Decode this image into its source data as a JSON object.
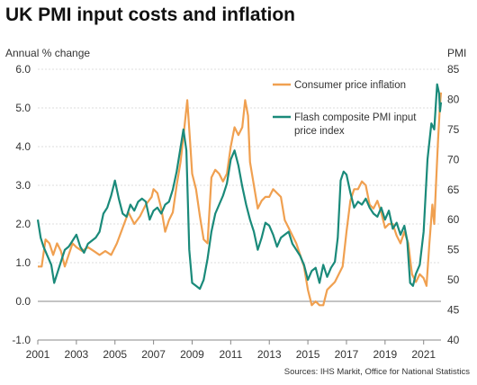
{
  "title": "UK PMI input costs and inflation",
  "source": "Sources: IHS Markit, Office for National Statistics",
  "colors": {
    "cpi": "#f0a050",
    "pmi": "#1a8a7a",
    "grid": "#dddddd"
  },
  "chart_data": {
    "type": "line",
    "title": "UK PMI input costs and inflation",
    "ylabel_left": "Annual % change",
    "ylabel_right": "PMI",
    "xlim": [
      2001.0,
      2021.9
    ],
    "ylim_left": [
      -1.0,
      6.0
    ],
    "ylim_right": [
      40,
      85
    ],
    "grid": true,
    "legend_position": "top-right",
    "x_ticks": [
      2001,
      2003,
      2005,
      2007,
      2009,
      2011,
      2013,
      2015,
      2017,
      2019,
      2021
    ],
    "y_ticks_left": [
      "-1.0",
      "0.0",
      "1.0",
      "2.0",
      "3.0",
      "4.0",
      "5.0",
      "6.0"
    ],
    "y_ticks_right": [
      "40",
      "45",
      "50",
      "55",
      "60",
      "65",
      "70",
      "75",
      "80",
      "85"
    ],
    "series": [
      {
        "name": "Consumer price inflation",
        "axis": "left",
        "points": [
          [
            2001.0,
            0.9
          ],
          [
            2001.2,
            0.9
          ],
          [
            2001.4,
            1.6
          ],
          [
            2001.6,
            1.5
          ],
          [
            2001.8,
            1.2
          ],
          [
            2002.0,
            1.5
          ],
          [
            2002.2,
            1.3
          ],
          [
            2002.4,
            0.9
          ],
          [
            2002.6,
            1.2
          ],
          [
            2002.8,
            1.5
          ],
          [
            2003.0,
            1.4
          ],
          [
            2003.3,
            1.3
          ],
          [
            2003.6,
            1.4
          ],
          [
            2003.9,
            1.3
          ],
          [
            2004.2,
            1.2
          ],
          [
            2004.5,
            1.3
          ],
          [
            2004.8,
            1.2
          ],
          [
            2005.1,
            1.5
          ],
          [
            2005.4,
            1.9
          ],
          [
            2005.7,
            2.3
          ],
          [
            2006.0,
            2.0
          ],
          [
            2006.3,
            2.2
          ],
          [
            2006.6,
            2.5
          ],
          [
            2006.9,
            2.7
          ],
          [
            2007.0,
            2.9
          ],
          [
            2007.2,
            2.8
          ],
          [
            2007.4,
            2.4
          ],
          [
            2007.6,
            1.8
          ],
          [
            2007.8,
            2.1
          ],
          [
            2008.0,
            2.3
          ],
          [
            2008.2,
            3.0
          ],
          [
            2008.4,
            3.6
          ],
          [
            2008.6,
            4.5
          ],
          [
            2008.75,
            5.2
          ],
          [
            2008.9,
            4.1
          ],
          [
            2009.0,
            3.3
          ],
          [
            2009.2,
            2.9
          ],
          [
            2009.4,
            2.2
          ],
          [
            2009.6,
            1.6
          ],
          [
            2009.8,
            1.5
          ],
          [
            2010.0,
            3.2
          ],
          [
            2010.2,
            3.4
          ],
          [
            2010.4,
            3.3
          ],
          [
            2010.6,
            3.1
          ],
          [
            2010.8,
            3.3
          ],
          [
            2011.0,
            4.0
          ],
          [
            2011.2,
            4.5
          ],
          [
            2011.4,
            4.3
          ],
          [
            2011.6,
            4.5
          ],
          [
            2011.75,
            5.2
          ],
          [
            2011.9,
            4.8
          ],
          [
            2012.0,
            3.6
          ],
          [
            2012.2,
            3.0
          ],
          [
            2012.4,
            2.4
          ],
          [
            2012.6,
            2.6
          ],
          [
            2012.8,
            2.7
          ],
          [
            2013.0,
            2.7
          ],
          [
            2013.2,
            2.9
          ],
          [
            2013.4,
            2.8
          ],
          [
            2013.6,
            2.7
          ],
          [
            2013.8,
            2.1
          ],
          [
            2014.0,
            1.9
          ],
          [
            2014.2,
            1.7
          ],
          [
            2014.4,
            1.5
          ],
          [
            2014.6,
            1.2
          ],
          [
            2014.8,
            0.9
          ],
          [
            2015.0,
            0.3
          ],
          [
            2015.2,
            -0.1
          ],
          [
            2015.4,
            0.0
          ],
          [
            2015.6,
            -0.1
          ],
          [
            2015.8,
            -0.1
          ],
          [
            2016.0,
            0.3
          ],
          [
            2016.2,
            0.4
          ],
          [
            2016.4,
            0.5
          ],
          [
            2016.6,
            0.7
          ],
          [
            2016.8,
            0.9
          ],
          [
            2017.0,
            1.8
          ],
          [
            2017.2,
            2.6
          ],
          [
            2017.4,
            2.9
          ],
          [
            2017.6,
            2.9
          ],
          [
            2017.8,
            3.1
          ],
          [
            2018.0,
            3.0
          ],
          [
            2018.2,
            2.5
          ],
          [
            2018.4,
            2.4
          ],
          [
            2018.6,
            2.6
          ],
          [
            2018.8,
            2.3
          ],
          [
            2019.0,
            1.9
          ],
          [
            2019.2,
            2.0
          ],
          [
            2019.4,
            2.0
          ],
          [
            2019.6,
            1.7
          ],
          [
            2019.8,
            1.5
          ],
          [
            2020.0,
            1.8
          ],
          [
            2020.2,
            1.5
          ],
          [
            2020.4,
            0.7
          ],
          [
            2020.6,
            0.5
          ],
          [
            2020.8,
            0.7
          ],
          [
            2021.0,
            0.6
          ],
          [
            2021.15,
            0.4
          ],
          [
            2021.3,
            1.5
          ],
          [
            2021.45,
            2.5
          ],
          [
            2021.55,
            2.0
          ],
          [
            2021.65,
            3.1
          ],
          [
            2021.75,
            4.2
          ],
          [
            2021.85,
            5.1
          ],
          [
            2021.9,
            5.4
          ]
        ]
      },
      {
        "name": "Flash composite PMI input price index",
        "axis": "right",
        "points": [
          [
            2001.0,
            60.0
          ],
          [
            2001.15,
            57.0
          ],
          [
            2001.3,
            55.5
          ],
          [
            2001.5,
            54.0
          ],
          [
            2001.7,
            52.5
          ],
          [
            2001.85,
            49.5
          ],
          [
            2002.0,
            51.0
          ],
          [
            2002.2,
            53.0
          ],
          [
            2002.4,
            55.0
          ],
          [
            2002.6,
            55.5
          ],
          [
            2002.8,
            56.5
          ],
          [
            2003.0,
            57.5
          ],
          [
            2003.2,
            55.5
          ],
          [
            2003.4,
            54.5
          ],
          [
            2003.6,
            56.0
          ],
          [
            2003.8,
            56.5
          ],
          [
            2004.0,
            57.0
          ],
          [
            2004.2,
            58.0
          ],
          [
            2004.4,
            61.0
          ],
          [
            2004.6,
            62.0
          ],
          [
            2004.8,
            64.0
          ],
          [
            2005.0,
            66.5
          ],
          [
            2005.2,
            63.5
          ],
          [
            2005.4,
            61.0
          ],
          [
            2005.6,
            60.5
          ],
          [
            2005.8,
            62.5
          ],
          [
            2006.0,
            61.5
          ],
          [
            2006.2,
            63.0
          ],
          [
            2006.4,
            63.5
          ],
          [
            2006.6,
            63.0
          ],
          [
            2006.8,
            60.0
          ],
          [
            2007.0,
            61.5
          ],
          [
            2007.2,
            62.0
          ],
          [
            2007.4,
            61.0
          ],
          [
            2007.6,
            62.5
          ],
          [
            2007.8,
            63.0
          ],
          [
            2008.0,
            65.0
          ],
          [
            2008.2,
            68.0
          ],
          [
            2008.4,
            72.0
          ],
          [
            2008.55,
            75.0
          ],
          [
            2008.7,
            71.5
          ],
          [
            2008.85,
            55.0
          ],
          [
            2009.0,
            49.5
          ],
          [
            2009.2,
            49.0
          ],
          [
            2009.4,
            48.5
          ],
          [
            2009.6,
            50.0
          ],
          [
            2009.8,
            53.5
          ],
          [
            2010.0,
            58.0
          ],
          [
            2010.2,
            61.0
          ],
          [
            2010.4,
            62.5
          ],
          [
            2010.6,
            64.0
          ],
          [
            2010.8,
            66.0
          ],
          [
            2011.0,
            70.0
          ],
          [
            2011.2,
            71.5
          ],
          [
            2011.4,
            69.0
          ],
          [
            2011.6,
            65.5
          ],
          [
            2011.8,
            62.5
          ],
          [
            2012.0,
            60.0
          ],
          [
            2012.2,
            58.0
          ],
          [
            2012.4,
            55.0
          ],
          [
            2012.6,
            57.0
          ],
          [
            2012.8,
            59.5
          ],
          [
            2013.0,
            59.0
          ],
          [
            2013.2,
            57.5
          ],
          [
            2013.4,
            55.5
          ],
          [
            2013.6,
            57.0
          ],
          [
            2013.8,
            57.5
          ],
          [
            2014.0,
            58.0
          ],
          [
            2014.2,
            56.0
          ],
          [
            2014.4,
            55.0
          ],
          [
            2014.6,
            54.0
          ],
          [
            2014.8,
            52.5
          ],
          [
            2015.0,
            50.0
          ],
          [
            2015.2,
            51.5
          ],
          [
            2015.4,
            52.0
          ],
          [
            2015.6,
            49.5
          ],
          [
            2015.8,
            52.5
          ],
          [
            2016.0,
            50.5
          ],
          [
            2016.2,
            52.0
          ],
          [
            2016.4,
            53.0
          ],
          [
            2016.55,
            57.0
          ],
          [
            2016.7,
            66.5
          ],
          [
            2016.85,
            68.0
          ],
          [
            2017.0,
            67.5
          ],
          [
            2017.2,
            64.5
          ],
          [
            2017.4,
            62.0
          ],
          [
            2017.6,
            63.0
          ],
          [
            2017.8,
            62.5
          ],
          [
            2018.0,
            63.5
          ],
          [
            2018.2,
            62.0
          ],
          [
            2018.4,
            61.0
          ],
          [
            2018.6,
            60.5
          ],
          [
            2018.8,
            62.0
          ],
          [
            2019.0,
            60.0
          ],
          [
            2019.2,
            61.5
          ],
          [
            2019.4,
            58.5
          ],
          [
            2019.6,
            59.5
          ],
          [
            2019.8,
            57.5
          ],
          [
            2020.0,
            59.0
          ],
          [
            2020.15,
            56.5
          ],
          [
            2020.3,
            49.5
          ],
          [
            2020.45,
            49.0
          ],
          [
            2020.6,
            51.0
          ],
          [
            2020.8,
            52.5
          ],
          [
            2021.0,
            58.0
          ],
          [
            2021.2,
            70.0
          ],
          [
            2021.4,
            76.0
          ],
          [
            2021.55,
            75.0
          ],
          [
            2021.7,
            82.5
          ],
          [
            2021.8,
            81.0
          ],
          [
            2021.85,
            78.0
          ],
          [
            2021.9,
            79.5
          ]
        ]
      }
    ]
  }
}
